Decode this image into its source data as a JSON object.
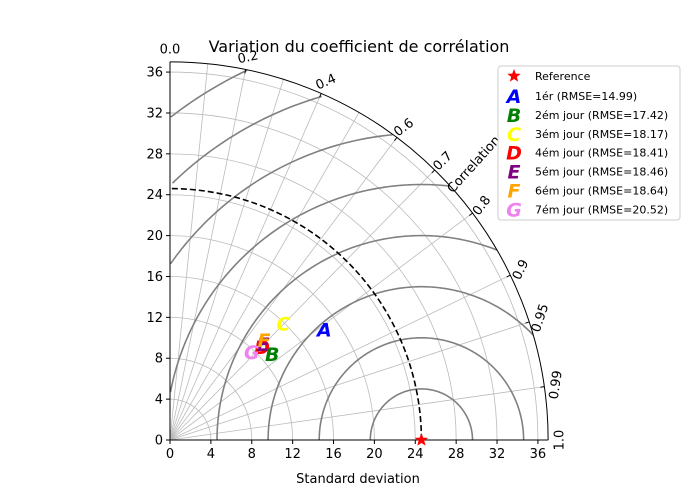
{
  "chart_data": {
    "type": "scatter",
    "subtype": "taylor-diagram",
    "title": "Variation du coefficient de corrélation",
    "xlabel": "Standard deviation",
    "correlation_label": "Correlation",
    "std_range": [
      0,
      37
    ],
    "std_ticks": [
      0,
      4,
      8,
      12,
      16,
      20,
      24,
      28,
      32,
      36
    ],
    "correlation_ticks": [
      "0.0",
      "0.2",
      "0.4",
      "0.6",
      "0.7",
      "0.8",
      "0.9",
      "0.95",
      "0.99",
      "1.0"
    ],
    "correlation_values": [
      0.0,
      0.2,
      0.4,
      0.6,
      0.7,
      0.8,
      0.9,
      0.95,
      0.99,
      1.0
    ],
    "reference": {
      "label": "Reference",
      "std": 24.6,
      "correlation": 1.0,
      "color": "#ff0000"
    },
    "rmse_contours": [
      5,
      10,
      15,
      20,
      25,
      30,
      35,
      40
    ],
    "rmse_color": "#808080",
    "reference_arc_color": "#000000",
    "grid": true,
    "legend_position": "top-right",
    "points": [
      {
        "marker": "A",
        "label": "1ér (RMSE=14.99)",
        "color": "#0000ff",
        "x": 15.1,
        "y": 10.8
      },
      {
        "marker": "B",
        "label": "2ém jour (RMSE=17.42)",
        "color": "#008000",
        "x": 10.0,
        "y": 8.4
      },
      {
        "marker": "C",
        "label": "3ém jour (RMSE=18.17)",
        "color": "#ffff00",
        "x": 11.1,
        "y": 11.4
      },
      {
        "marker": "D",
        "label": "4ém jour (RMSE=18.41)",
        "color": "#ff0000",
        "x": 9.0,
        "y": 9.1
      },
      {
        "marker": "E",
        "label": "5ém jour (RMSE=18.46)",
        "color": "#800080",
        "x": 9.1,
        "y": 9.4
      },
      {
        "marker": "F",
        "label": "6ém jour (RMSE=18.64)",
        "color": "#ffa500",
        "x": 9.2,
        "y": 9.8
      },
      {
        "marker": "G",
        "label": "7ém jour (RMSE=20.52)",
        "color": "#ee82ee",
        "x": 8.0,
        "y": 8.6
      }
    ]
  }
}
